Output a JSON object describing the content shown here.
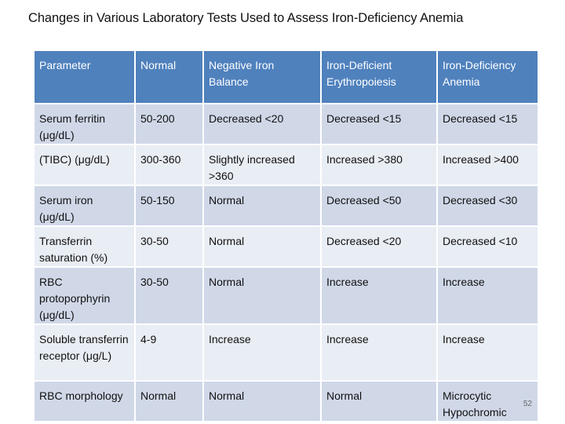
{
  "title": "Changes in Various Laboratory Tests Used to Assess Iron-Deficiency Anemia",
  "table": {
    "headers": [
      "Parameter",
      "Normal",
      "Negative Iron Balance",
      "Iron-Deficient Erythropoiesis",
      "Iron-Deficiency Anemia"
    ],
    "rows": [
      [
        "Serum ferritin (μg/dL)",
        "50-200",
        "Decreased <20",
        "Decreased <15",
        "Decreased <15"
      ],
      [
        "(TIBC) (μg/dL)",
        "300-360",
        "Slightly increased >360",
        "Increased >380",
        "Increased >400"
      ],
      [
        "Serum iron (μg/dL)",
        "50-150",
        "Normal",
        "Decreased <50",
        "Decreased <30"
      ],
      [
        "Transferrin saturation (%)",
        "30-50",
        "Normal",
        "Decreased <20",
        "Decreased <10"
      ],
      [
        "RBC protoporphyrin (μg/dL)",
        "30-50",
        "Normal",
        "Increase",
        "Increase"
      ],
      [
        "Soluble transferrin receptor (μg/L)",
        "4-9",
        "Increase",
        "Increase",
        "Increase"
      ],
      [
        "RBC morphology",
        "Normal",
        "Normal",
        "Normal",
        "Microcytic Hypochromic"
      ]
    ]
  },
  "page_number": "52",
  "colors": {
    "header_bg": "#4f81bd",
    "row_odd_bg": "#d0d8e8",
    "row_even_bg": "#e9edf4"
  }
}
